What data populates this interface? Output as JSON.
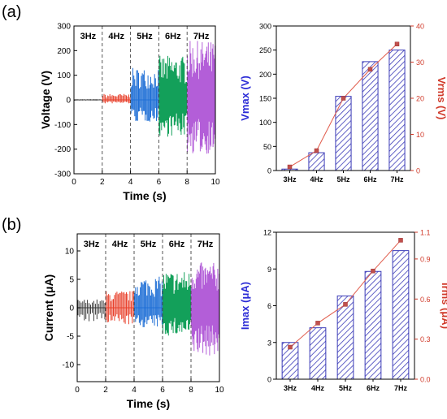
{
  "panels": {
    "a": {
      "label": "(a)"
    },
    "b": {
      "label": "(b)"
    }
  },
  "colors": {
    "freq": [
      "#3a3a3a",
      "#e8412c",
      "#1f6fd6",
      "#13a05a",
      "#b35ed8"
    ],
    "bar_hatch": "#3a3ab8",
    "rms_line": "#e05a4a",
    "rms_marker": "#c0504d",
    "left_axis_text": "#2b2bd6",
    "right_axis_text": "#d03a2a"
  },
  "chart_data": [
    {
      "id": "voltage-time",
      "type": "line",
      "title": "",
      "xlabel": "Time (s)",
      "ylabel": "Voltage (V)",
      "xlim": [
        0,
        10
      ],
      "ylim": [
        -300,
        300
      ],
      "xticks": [
        "0",
        "2",
        "4",
        "6",
        "8",
        "10"
      ],
      "yticks": [
        "-300",
        "-200",
        "-100",
        "0",
        "100",
        "200",
        "300"
      ],
      "segments": [
        {
          "name": "3Hz",
          "x": [
            0,
            2
          ],
          "amplitude": 3,
          "lower": 3,
          "pulses_per_s": 3
        },
        {
          "name": "4Hz",
          "x": [
            2,
            4
          ],
          "amplitude": 25,
          "lower": 15,
          "pulses_per_s": 4
        },
        {
          "name": "5Hz",
          "x": [
            4,
            6
          ],
          "amplitude": 130,
          "lower": 90,
          "pulses_per_s": 5
        },
        {
          "name": "6Hz",
          "x": [
            6,
            8
          ],
          "amplitude": 180,
          "lower": 150,
          "pulses_per_s": 6
        },
        {
          "name": "7Hz",
          "x": [
            8,
            10
          ],
          "amplitude": 240,
          "lower": 220,
          "pulses_per_s": 7
        }
      ],
      "segment_labels": [
        "3Hz",
        "4Hz",
        "5Hz",
        "6Hz",
        "7Hz"
      ],
      "dividers": [
        2,
        4,
        6,
        8
      ]
    },
    {
      "id": "vmax-vrms",
      "type": "bar",
      "title": "",
      "categories": [
        "3Hz",
        "4Hz",
        "5Hz",
        "6Hz",
        "7Hz"
      ],
      "ylabel": "Vmax (V)",
      "ylim": [
        0,
        300
      ],
      "yticks": [
        "0",
        "50",
        "100",
        "150",
        "200",
        "250",
        "300"
      ],
      "y2label": "Vrms (V)",
      "y2lim": [
        0,
        40
      ],
      "y2ticks": [
        "0",
        "10",
        "20",
        "30",
        "40"
      ],
      "series": [
        {
          "name": "Vmax",
          "axis": "left",
          "kind": "bar",
          "values": [
            3,
            37,
            154,
            226,
            250
          ]
        },
        {
          "name": "Vrms",
          "axis": "right",
          "kind": "line",
          "values": [
            1,
            5.5,
            20,
            28,
            35
          ]
        }
      ]
    },
    {
      "id": "current-time",
      "type": "line",
      "title": "",
      "xlabel": "Time (s)",
      "ylabel": "Current (μA)",
      "xlim": [
        0,
        10
      ],
      "ylim": [
        -13,
        13
      ],
      "xticks": [
        "0",
        "2",
        "4",
        "6",
        "8",
        "10"
      ],
      "yticks": [
        "-10",
        "-5",
        "0",
        "5",
        "10"
      ],
      "ytick_values": [
        -10,
        -5,
        0,
        5,
        10
      ],
      "segments": [
        {
          "name": "3Hz",
          "x": [
            0,
            2
          ],
          "amplitude": 1.5,
          "lower": 2.5,
          "pulses_per_s": 3
        },
        {
          "name": "4Hz",
          "x": [
            2,
            4
          ],
          "amplitude": 3,
          "lower": 3,
          "pulses_per_s": 4
        },
        {
          "name": "5Hz",
          "x": [
            4,
            6
          ],
          "amplitude": 5.5,
          "lower": 3.5,
          "pulses_per_s": 5
        },
        {
          "name": "6Hz",
          "x": [
            6,
            8
          ],
          "amplitude": 6.5,
          "lower": 5,
          "pulses_per_s": 6
        },
        {
          "name": "7Hz",
          "x": [
            8,
            10
          ],
          "amplitude": 8,
          "lower": 8.5,
          "pulses_per_s": 7
        }
      ],
      "segment_labels": [
        "3Hz",
        "4Hz",
        "5Hz",
        "6Hz",
        "7Hz"
      ],
      "dividers": [
        2,
        4,
        6,
        8
      ]
    },
    {
      "id": "imax-irms",
      "type": "bar",
      "title": "",
      "categories": [
        "3Hz",
        "4Hz",
        "5Hz",
        "6Hz",
        "7Hz"
      ],
      "ylabel": "Imax (μA)",
      "ylim": [
        0,
        12
      ],
      "yticks": [
        "0",
        "3",
        "6",
        "9",
        "12"
      ],
      "y2label": "Irms (μA)",
      "y2lim": [
        0,
        1.1
      ],
      "y2ticks": [
        "0.0",
        "0.3",
        "0.6",
        "0.9",
        "1.1"
      ],
      "y2tick_values": [
        0,
        0.3,
        0.6,
        0.9,
        1.1
      ],
      "series": [
        {
          "name": "Imax",
          "axis": "left",
          "kind": "bar",
          "values": [
            3,
            4.2,
            6.8,
            8.8,
            10.5
          ]
        },
        {
          "name": "Irms",
          "axis": "right",
          "kind": "line",
          "values": [
            0.24,
            0.42,
            0.56,
            0.81,
            1.04
          ]
        }
      ]
    }
  ]
}
